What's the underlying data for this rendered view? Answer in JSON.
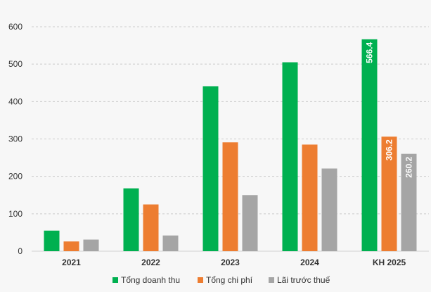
{
  "chart_data": {
    "type": "bar",
    "title": "",
    "xlabel": "",
    "ylabel": "",
    "categories": [
      "2021",
      "2022",
      "2023",
      "2024",
      "KH 2025"
    ],
    "ylim": [
      0,
      600
    ],
    "yticks": [
      "0",
      "100",
      "200",
      "300",
      "400",
      "500",
      "600"
    ],
    "grid": "horizontal dashed",
    "legend_position": "bottom",
    "series": [
      {
        "name": "Tổng doanh thu",
        "color": "#00b050",
        "values": [
          55,
          168,
          441,
          505,
          566.4
        ],
        "value_labels": [
          null,
          null,
          null,
          null,
          "566.4"
        ]
      },
      {
        "name": "Tổng chi phí",
        "color": "#ed7d31",
        "values": [
          26,
          125,
          291,
          285,
          306.2
        ],
        "value_labels": [
          null,
          null,
          null,
          null,
          "306.2"
        ]
      },
      {
        "name": "Lãi trước thuế",
        "color": "#a5a5a5",
        "values": [
          31,
          42,
          150,
          221,
          260.2
        ],
        "value_labels": [
          null,
          null,
          null,
          null,
          "260.2"
        ]
      }
    ]
  }
}
